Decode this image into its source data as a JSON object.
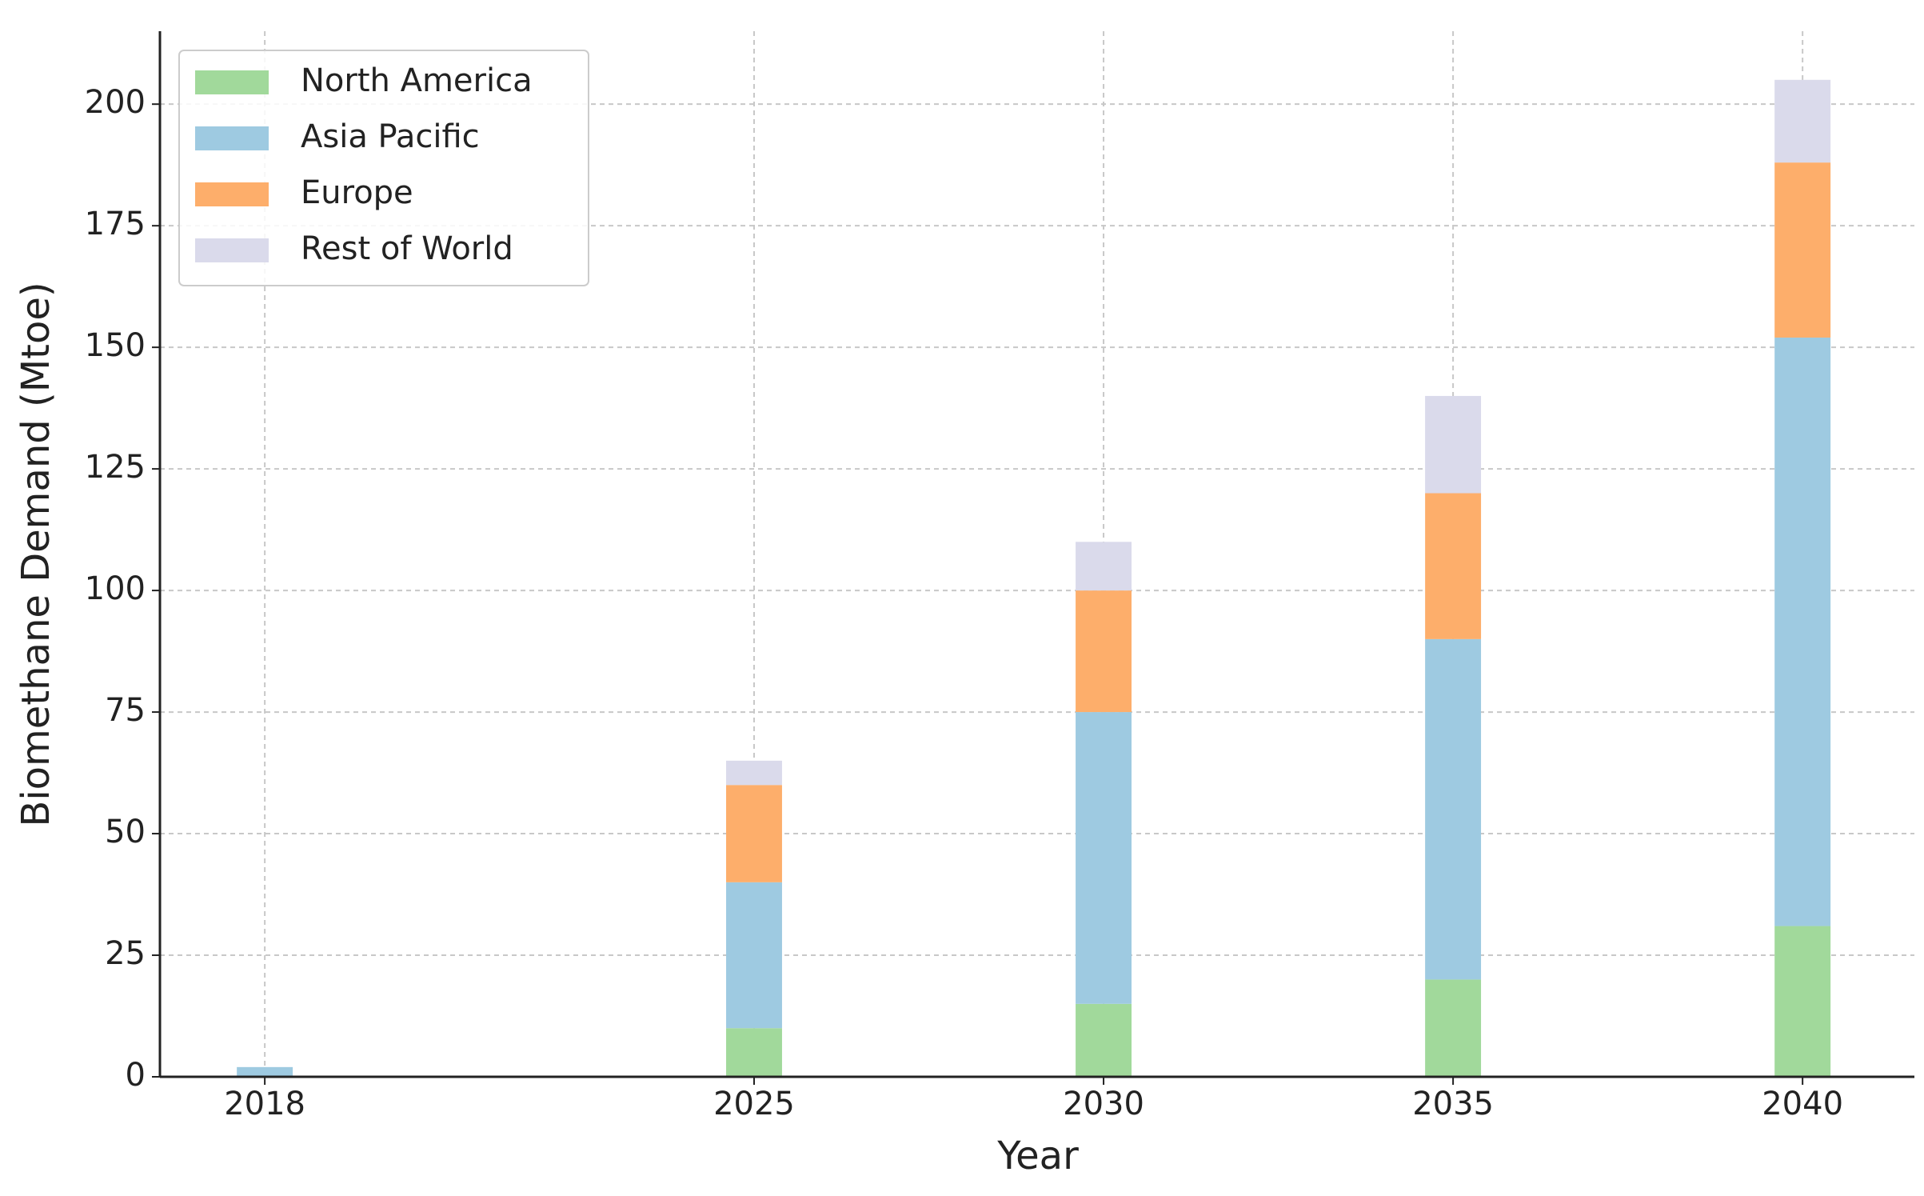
{
  "chart_data": {
    "type": "stacked_bar",
    "x": [
      2018,
      2025,
      2030,
      2035,
      2040
    ],
    "series": [
      {
        "name": "North America",
        "color": "#a1d99b",
        "values": [
          0,
          10,
          15,
          20,
          31
        ]
      },
      {
        "name": "Asia Pacific",
        "color": "#9ecae1",
        "values": [
          2,
          30,
          60,
          70,
          121
        ]
      },
      {
        "name": "Europe",
        "color": "#fdae6b",
        "values": [
          0,
          20,
          25,
          30,
          36
        ]
      },
      {
        "name": "Rest of World",
        "color": "#dadaeb",
        "values": [
          0,
          5,
          10,
          20,
          17
        ]
      }
    ],
    "xlabel": "Year",
    "ylabel": "Biomethane Demand (Mtoe)",
    "xlim": [
      2016.5,
      2041.6
    ],
    "xticks": [
      2018,
      2025,
      2030,
      2035,
      2040
    ],
    "ylim": [
      0,
      215
    ],
    "yticks": [
      0,
      25,
      50,
      75,
      100,
      125,
      150,
      175,
      200
    ],
    "grid": true,
    "legend": "upper left"
  }
}
